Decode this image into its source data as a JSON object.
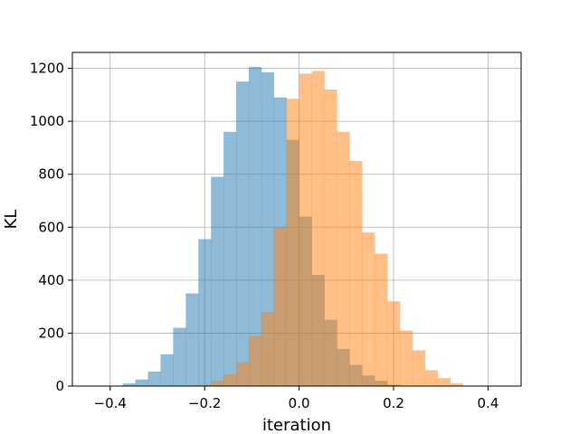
{
  "chart_data": {
    "type": "bar",
    "xlabel": "iteration",
    "ylabel": "KL",
    "xlim": [
      -0.48,
      0.47
    ],
    "ylim": [
      0,
      1260
    ],
    "grid": true,
    "xticks": [
      -0.4,
      -0.2,
      0.0,
      0.2,
      0.4
    ],
    "xtick_labels": [
      "−0.4",
      "−0.2",
      "0.0",
      "0.2",
      "0.4"
    ],
    "yticks": [
      0,
      200,
      400,
      600,
      800,
      1000,
      1200
    ],
    "ytick_labels": [
      "0",
      "200",
      "400",
      "600",
      "800",
      "1000",
      "1200"
    ],
    "series": [
      {
        "color": "#1f77b4",
        "opacity": 0.5,
        "bin_start": -0.3733,
        "bin_width": 0.02667,
        "values": [
          10,
          25,
          55,
          120,
          220,
          350,
          555,
          790,
          960,
          1150,
          1205,
          1185,
          1090,
          930,
          640,
          420,
          250,
          140,
          80,
          40,
          20,
          5
        ]
      },
      {
        "color": "#ff7f0e",
        "opacity": 0.5,
        "bin_start": -0.2133,
        "bin_width": 0.02667,
        "values": [
          5,
          20,
          45,
          90,
          190,
          280,
          600,
          1085,
          1180,
          1190,
          1120,
          960,
          850,
          580,
          500,
          320,
          210,
          135,
          60,
          30,
          10
        ]
      }
    ]
  }
}
